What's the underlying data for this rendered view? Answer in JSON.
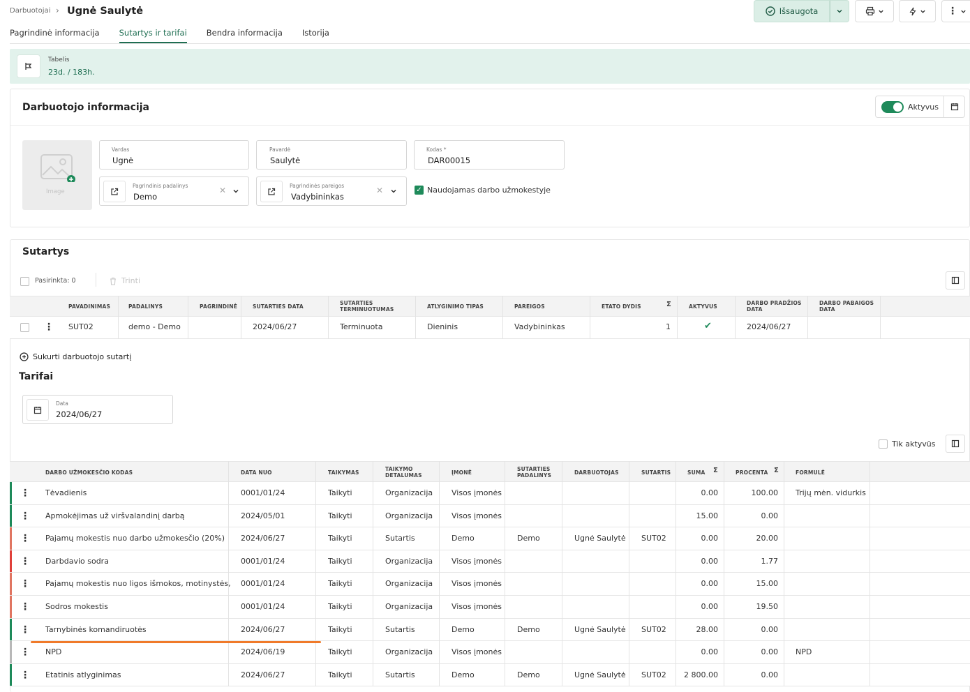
{
  "header": {
    "breadcrumb": "Darbuotojai",
    "title": "Ugnė Saulytė",
    "save_label": "Išsaugota",
    "tabs": [
      "Pagrindinė informacija",
      "Sutartys ir tarifai",
      "Bendra informacija",
      "Istorija"
    ]
  },
  "tabelis": {
    "label": "Tabelis",
    "value": "23d. / 183h."
  },
  "employee": {
    "section_title": "Darbuotojo informacija",
    "active_label": "Aktyvus",
    "image_label": "Image",
    "first_name": {
      "label": "Vardas",
      "value": "Ugnė"
    },
    "last_name": {
      "label": "Pavardė",
      "value": "Saulytė"
    },
    "code": {
      "label": "Kodas *",
      "value": "DAR00015"
    },
    "department": {
      "label": "Pagrindinis padalinys",
      "value": "Demo"
    },
    "position": {
      "label": "Pagrindinės pareigos",
      "value": "Vadybininkas"
    },
    "payroll_label": "Naudojamas darbo užmokestyje"
  },
  "contracts": {
    "title": "Sutartys",
    "selected_label": "Pasirinkta: 0",
    "delete_label": "Trinti",
    "headers": [
      "PAVADINIMAS",
      "PADALINYS",
      "PAGRINDINĖ",
      "SUTARTIES DATA",
      "SUTARTIES TERMINUOTUMAS",
      "ATLYGINIMO TIPAS",
      "PAREIGOS",
      "ETATO DYDIS",
      "AKTYVUS",
      "DARBO PRADŽIOS DATA",
      "DARBO PABAIGOS DATA"
    ],
    "rows": [
      {
        "name": "SUT02",
        "dept": "demo - Demo",
        "main": "",
        "date": "2024/06/27",
        "term": "Terminuota",
        "pay": "Dieninis",
        "position": "Vadybininkas",
        "fte": "1",
        "active": "✔",
        "start": "2024/06/27",
        "end": ""
      }
    ],
    "create_label": "Sukurti darbuotojo sutartį"
  },
  "tariffs": {
    "title": "Tarifai",
    "date_label": "Data",
    "date_value": "2024/06/27",
    "only_active_label": "Tik aktyvūs",
    "headers": [
      "DARBO UŽMOKESČIO KODAS",
      "DATA NUO",
      "TAIKYMAS",
      "TAIKYMO DETALUMAS",
      "ĮMONĖ",
      "SUTARTIES PADALINYS",
      "DARBUOTOJAS",
      "SUTARTIS",
      "SUMA",
      "PROCENTA",
      "FORMULĖ"
    ],
    "rows": [
      {
        "code": "Tėvadienis",
        "from": "0001/01/24",
        "apply": "Taikyti",
        "detail": "Organizacija",
        "company": "Visos įmonės",
        "dept": "",
        "employee": "",
        "contract": "",
        "sum": "0.00",
        "pct": "100.00",
        "formula": "Trijų mėn. vidurkis",
        "color": "#1e8a5a"
      },
      {
        "code": "Apmokėjimas už viršvalandinį darbą",
        "from": "2024/05/01",
        "apply": "Taikyti",
        "detail": "Organizacija",
        "company": "Visos įmonės",
        "dept": "",
        "employee": "",
        "contract": "",
        "sum": "15.00",
        "pct": "0.00",
        "formula": "",
        "color": "#1e8a5a"
      },
      {
        "code": "Pajamų mokestis nuo darbo užmokesčio (20%)",
        "from": "2024/06/27",
        "apply": "Taikyti",
        "detail": "Sutartis",
        "company": "Demo",
        "dept": "Demo",
        "employee": "Ugnė Saulytė",
        "contract": "SUT02",
        "sum": "0.00",
        "pct": "20.00",
        "formula": "",
        "color": "#e07561"
      },
      {
        "code": "Darbdavio sodra",
        "from": "0001/01/24",
        "apply": "Taikyti",
        "detail": "Organizacija",
        "company": "Visos įmonės",
        "dept": "",
        "employee": "",
        "contract": "",
        "sum": "0.00",
        "pct": "1.77",
        "formula": "",
        "color": "#e0403a"
      },
      {
        "code": "Pajamų mokestis nuo ligos išmokos, motinystės,",
        "from": "0001/01/24",
        "apply": "Taikyti",
        "detail": "Organizacija",
        "company": "Visos įmonės",
        "dept": "",
        "employee": "",
        "contract": "",
        "sum": "0.00",
        "pct": "15.00",
        "formula": "",
        "color": "#e07561"
      },
      {
        "code": "Sodros mokestis",
        "from": "0001/01/24",
        "apply": "Taikyti",
        "detail": "Organizacija",
        "company": "Visos įmonės",
        "dept": "",
        "employee": "",
        "contract": "",
        "sum": "0.00",
        "pct": "19.50",
        "formula": "",
        "color": "#e07561"
      },
      {
        "code": "Tarnybinės komandiruotės",
        "from": "2024/06/27",
        "apply": "Taikyti",
        "detail": "Sutartis",
        "company": "Demo",
        "dept": "Demo",
        "employee": "Ugnė Saulytė",
        "contract": "SUT02",
        "sum": "28.00",
        "pct": "0.00",
        "formula": "",
        "color": "#1e8a5a"
      },
      {
        "code": "NPD",
        "from": "2024/06/19",
        "apply": "Taikyti",
        "detail": "Organizacija",
        "company": "Visos įmonės",
        "dept": "",
        "employee": "",
        "contract": "",
        "sum": "0.00",
        "pct": "0.00",
        "formula": "NPD",
        "color": "#b8b8b8"
      },
      {
        "code": "Etatinis atlyginimas",
        "from": "2024/06/27",
        "apply": "Taikyti",
        "detail": "Sutartis",
        "company": "Demo",
        "dept": "Demo",
        "employee": "Ugnė Saulytė",
        "contract": "SUT02",
        "sum": "2 800.00",
        "pct": "0.00",
        "formula": "",
        "color": "#1e8a5a"
      }
    ]
  },
  "colors": {
    "accent": "#1e8a5a",
    "banner": "#e2f2ec",
    "highlight": "#f07a2a"
  }
}
